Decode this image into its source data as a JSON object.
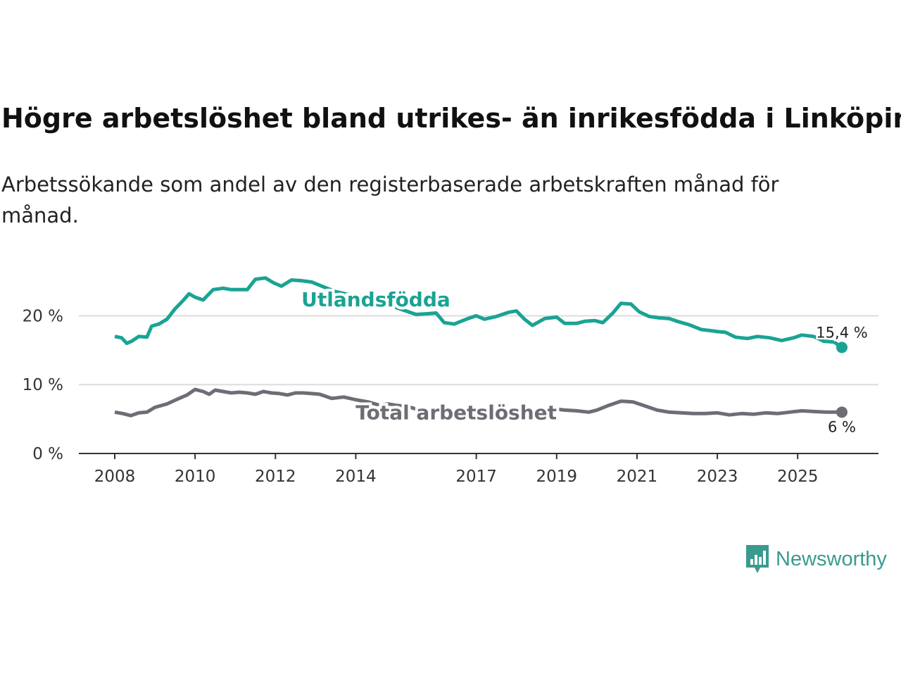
{
  "title": "Högre arbetslöshet bland utrikes- än inrikesfödda i Linköping",
  "subtitle": "Arbetssökande som andel av den registerbaserade arbetskraften månad för månad.",
  "brand": {
    "name": "Newsworthy",
    "color": "#3a9a8f",
    "icon": "newsworthy-logo-icon"
  },
  "chart_data": {
    "type": "line",
    "title": "Högre arbetslöshet bland utrikes- än inrikesfödda i Linköping",
    "xlabel": "",
    "ylabel": "",
    "xlim": [
      2008,
      2026.2
    ],
    "ylim": [
      0,
      27
    ],
    "yticks": [
      {
        "value": 0,
        "label": "0 %"
      },
      {
        "value": 10,
        "label": "10 %"
      },
      {
        "value": 20,
        "label": "20 %"
      }
    ],
    "xticks": [
      {
        "value": 2008,
        "label": "2008"
      },
      {
        "value": 2010,
        "label": "2010"
      },
      {
        "value": 2012,
        "label": "2012"
      },
      {
        "value": 2014,
        "label": "2014"
      },
      {
        "value": 2017,
        "label": "2017"
      },
      {
        "value": 2019,
        "label": "2019"
      },
      {
        "value": 2021,
        "label": "2021"
      },
      {
        "value": 2023,
        "label": "2023"
      },
      {
        "value": 2025,
        "label": "2025"
      }
    ],
    "grid": true,
    "series": [
      {
        "name": "Utlandsfödda",
        "color": "#1aa394",
        "end_label": "15,4 %",
        "points": [
          [
            2008.0,
            17.0
          ],
          [
            2008.17,
            16.8
          ],
          [
            2008.3,
            16.0
          ],
          [
            2008.42,
            16.3
          ],
          [
            2008.6,
            17.0
          ],
          [
            2008.8,
            16.9
          ],
          [
            2008.92,
            18.5
          ],
          [
            2009.1,
            18.8
          ],
          [
            2009.3,
            19.5
          ],
          [
            2009.5,
            21.0
          ],
          [
            2009.7,
            22.2
          ],
          [
            2009.85,
            23.2
          ],
          [
            2010.0,
            22.7
          ],
          [
            2010.2,
            22.3
          ],
          [
            2010.45,
            23.8
          ],
          [
            2010.7,
            24.0
          ],
          [
            2010.9,
            23.8
          ],
          [
            2011.1,
            23.8
          ],
          [
            2011.3,
            23.8
          ],
          [
            2011.5,
            25.3
          ],
          [
            2011.75,
            25.5
          ],
          [
            2011.95,
            24.8
          ],
          [
            2012.15,
            24.3
          ],
          [
            2012.4,
            25.2
          ],
          [
            2012.65,
            25.1
          ],
          [
            2012.9,
            24.9
          ],
          [
            2013.2,
            24.2
          ],
          [
            2013.5,
            23.5
          ],
          [
            2013.8,
            23.1
          ],
          [
            2014.1,
            22.8
          ],
          [
            2014.4,
            22.4
          ],
          [
            2014.7,
            21.6
          ],
          [
            2015.0,
            21.2
          ],
          [
            2015.2,
            20.8
          ],
          [
            2015.5,
            20.2
          ],
          [
            2015.8,
            20.3
          ],
          [
            2016.0,
            20.4
          ],
          [
            2016.2,
            19.0
          ],
          [
            2016.45,
            18.8
          ],
          [
            2016.75,
            19.5
          ],
          [
            2017.0,
            20.0
          ],
          [
            2017.2,
            19.5
          ],
          [
            2017.5,
            19.9
          ],
          [
            2017.8,
            20.5
          ],
          [
            2018.0,
            20.7
          ],
          [
            2018.2,
            19.5
          ],
          [
            2018.4,
            18.6
          ],
          [
            2018.7,
            19.6
          ],
          [
            2019.0,
            19.8
          ],
          [
            2019.2,
            18.9
          ],
          [
            2019.5,
            18.9
          ],
          [
            2019.7,
            19.2
          ],
          [
            2019.95,
            19.3
          ],
          [
            2020.15,
            19.0
          ],
          [
            2020.4,
            20.4
          ],
          [
            2020.6,
            21.8
          ],
          [
            2020.85,
            21.7
          ],
          [
            2021.05,
            20.6
          ],
          [
            2021.3,
            19.9
          ],
          [
            2021.55,
            19.7
          ],
          [
            2021.8,
            19.6
          ],
          [
            2022.0,
            19.2
          ],
          [
            2022.3,
            18.7
          ],
          [
            2022.6,
            18.0
          ],
          [
            2022.9,
            17.8
          ],
          [
            2023.0,
            17.7
          ],
          [
            2023.2,
            17.6
          ],
          [
            2023.45,
            16.9
          ],
          [
            2023.75,
            16.7
          ],
          [
            2024.0,
            17.0
          ],
          [
            2024.3,
            16.8
          ],
          [
            2024.6,
            16.4
          ],
          [
            2024.9,
            16.8
          ],
          [
            2025.1,
            17.2
          ],
          [
            2025.4,
            17.0
          ],
          [
            2025.65,
            16.3
          ],
          [
            2025.9,
            16.2
          ],
          [
            2026.1,
            15.4
          ]
        ]
      },
      {
        "name": "Total arbetslöshet",
        "color": "#6d6d75",
        "end_label": "6 %",
        "points": [
          [
            2008.0,
            6.0
          ],
          [
            2008.2,
            5.8
          ],
          [
            2008.4,
            5.5
          ],
          [
            2008.6,
            5.9
          ],
          [
            2008.8,
            6.0
          ],
          [
            2009.0,
            6.7
          ],
          [
            2009.3,
            7.2
          ],
          [
            2009.6,
            8.0
          ],
          [
            2009.8,
            8.5
          ],
          [
            2010.0,
            9.3
          ],
          [
            2010.2,
            9.0
          ],
          [
            2010.35,
            8.6
          ],
          [
            2010.5,
            9.2
          ],
          [
            2010.7,
            9.0
          ],
          [
            2010.9,
            8.8
          ],
          [
            2011.1,
            8.9
          ],
          [
            2011.3,
            8.8
          ],
          [
            2011.5,
            8.6
          ],
          [
            2011.7,
            9.0
          ],
          [
            2011.9,
            8.8
          ],
          [
            2012.1,
            8.7
          ],
          [
            2012.3,
            8.5
          ],
          [
            2012.5,
            8.8
          ],
          [
            2012.7,
            8.8
          ],
          [
            2012.9,
            8.7
          ],
          [
            2013.1,
            8.6
          ],
          [
            2013.4,
            8.0
          ],
          [
            2013.7,
            8.2
          ],
          [
            2014.0,
            7.8
          ],
          [
            2014.3,
            7.5
          ],
          [
            2014.6,
            7.0
          ],
          [
            2014.8,
            7.2
          ],
          [
            2015.0,
            7.0
          ],
          [
            2015.3,
            6.8
          ],
          [
            2015.6,
            6.3
          ],
          [
            2015.9,
            6.2
          ],
          [
            2016.2,
            6.5
          ],
          [
            2016.5,
            6.0
          ],
          [
            2016.8,
            6.1
          ],
          [
            2017.1,
            6.0
          ],
          [
            2017.4,
            5.9
          ],
          [
            2017.7,
            5.9
          ],
          [
            2018.0,
            6.0
          ],
          [
            2018.3,
            6.1
          ],
          [
            2018.6,
            6.3
          ],
          [
            2018.9,
            6.5
          ],
          [
            2019.2,
            6.3
          ],
          [
            2019.5,
            6.2
          ],
          [
            2019.8,
            6.0
          ],
          [
            2020.0,
            6.3
          ],
          [
            2020.3,
            7.0
          ],
          [
            2020.6,
            7.6
          ],
          [
            2020.9,
            7.5
          ],
          [
            2021.2,
            6.9
          ],
          [
            2021.5,
            6.3
          ],
          [
            2021.8,
            6.0
          ],
          [
            2022.1,
            5.9
          ],
          [
            2022.4,
            5.8
          ],
          [
            2022.7,
            5.8
          ],
          [
            2023.0,
            5.9
          ],
          [
            2023.3,
            5.6
          ],
          [
            2023.6,
            5.8
          ],
          [
            2023.9,
            5.7
          ],
          [
            2024.2,
            5.9
          ],
          [
            2024.5,
            5.8
          ],
          [
            2024.8,
            6.0
          ],
          [
            2025.1,
            6.2
          ],
          [
            2025.4,
            6.1
          ],
          [
            2025.7,
            6.0
          ],
          [
            2026.1,
            6.0
          ]
        ]
      }
    ]
  }
}
